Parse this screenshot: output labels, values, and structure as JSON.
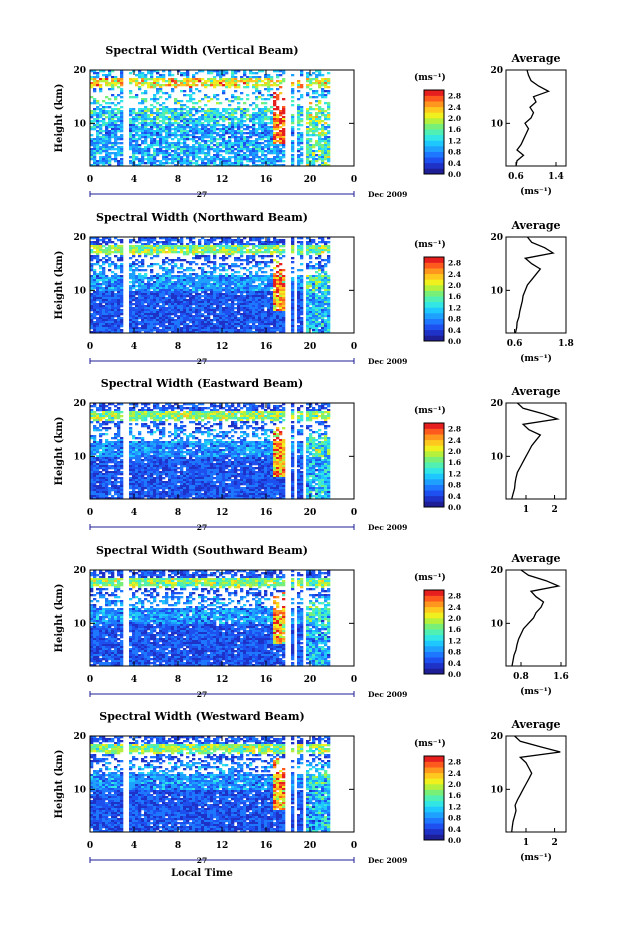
{
  "chart_data": {
    "type": "heatmap",
    "title": "",
    "xlabel": "Local Time",
    "x_ticks": [
      "0",
      "4",
      "8",
      "12",
      "16",
      "20",
      "0"
    ],
    "x_range": [
      0,
      24
    ],
    "date_day": "27",
    "date_label": "Dec 2009",
    "colorbar": {
      "unit_label": "(ms⁻¹)",
      "ticks": [
        "0.0",
        "0.4",
        "0.8",
        "1.2",
        "1.6",
        "2.0",
        "2.4",
        "2.8"
      ],
      "range": [
        0.0,
        3.0
      ],
      "colors": [
        "#1e1e96",
        "#1e32c8",
        "#1e50f0",
        "#1e78ff",
        "#1ea0ff",
        "#1ec8ff",
        "#32e6e6",
        "#50f0b4",
        "#78f078",
        "#b4f03c",
        "#f0f01e",
        "#ffc81e",
        "#ff961e",
        "#ff5a1e",
        "#e61e1e"
      ]
    },
    "panels": [
      {
        "title": "Spectral Width (Vertical Beam)",
        "ylabel": "Height (km)",
        "y_ticks": [
          "10",
          "20"
        ],
        "y_range": [
          2,
          20
        ],
        "avg_title": "Average",
        "avg_xlabel": "(ms⁻¹)",
        "avg_x_ticks": [
          "0.6",
          "1.4"
        ],
        "avg_x_range": [
          0.4,
          1.6
        ],
        "avg_profile": [
          [
            2,
            0.6
          ],
          [
            3,
            0.62
          ],
          [
            4,
            0.75
          ],
          [
            5,
            0.62
          ],
          [
            6,
            0.7
          ],
          [
            7,
            0.75
          ],
          [
            8,
            0.8
          ],
          [
            9,
            0.85
          ],
          [
            10,
            0.78
          ],
          [
            11,
            0.9
          ],
          [
            12,
            0.95
          ],
          [
            13,
            0.88
          ],
          [
            14,
            1.0
          ],
          [
            15,
            0.95
          ],
          [
            16,
            1.25
          ],
          [
            17,
            1.05
          ],
          [
            18,
            0.9
          ],
          [
            19,
            0.85
          ],
          [
            20,
            0.82
          ]
        ]
      },
      {
        "title": "Spectral Width (Northward Beam)",
        "ylabel": "Height (km)",
        "y_ticks": [
          "10",
          "20"
        ],
        "y_range": [
          2,
          20
        ],
        "avg_title": "Average",
        "avg_xlabel": "(ms⁻¹)",
        "avg_x_ticks": [
          "0.6",
          "1.8"
        ],
        "avg_x_range": [
          0.4,
          1.8
        ],
        "avg_profile": [
          [
            2,
            0.62
          ],
          [
            3,
            0.65
          ],
          [
            4,
            0.66
          ],
          [
            5,
            0.7
          ],
          [
            6,
            0.72
          ],
          [
            7,
            0.75
          ],
          [
            8,
            0.78
          ],
          [
            9,
            0.8
          ],
          [
            10,
            0.85
          ],
          [
            11,
            0.9
          ],
          [
            12,
            1.0
          ],
          [
            13,
            1.1
          ],
          [
            14,
            1.2
          ],
          [
            15,
            1.0
          ],
          [
            16,
            0.85
          ],
          [
            17,
            1.5
          ],
          [
            18,
            1.3
          ],
          [
            19,
            1.0
          ],
          [
            20,
            0.9
          ]
        ]
      },
      {
        "title": "Spectral Width (Eastward Beam)",
        "ylabel": "Height (km)",
        "y_ticks": [
          "10",
          "20"
        ],
        "y_range": [
          2,
          20
        ],
        "avg_title": "Average",
        "avg_xlabel": "",
        "avg_x_ticks": [
          "1",
          "2"
        ],
        "avg_x_range": [
          0.3,
          2.4
        ],
        "avg_profile": [
          [
            2,
            0.5
          ],
          [
            3,
            0.55
          ],
          [
            4,
            0.6
          ],
          [
            5,
            0.62
          ],
          [
            6,
            0.65
          ],
          [
            7,
            0.7
          ],
          [
            8,
            0.8
          ],
          [
            9,
            0.9
          ],
          [
            10,
            1.0
          ],
          [
            11,
            1.1
          ],
          [
            12,
            1.2
          ],
          [
            13,
            1.35
          ],
          [
            14,
            1.5
          ],
          [
            15,
            1.1
          ],
          [
            16,
            0.9
          ],
          [
            17,
            2.1
          ],
          [
            18,
            1.6
          ],
          [
            19,
            0.9
          ],
          [
            20,
            0.7
          ]
        ]
      },
      {
        "title": "Spectral Width (Southward Beam)",
        "ylabel": "Height (km)",
        "y_ticks": [
          "10",
          "20"
        ],
        "y_range": [
          2,
          20
        ],
        "avg_title": "Average",
        "avg_xlabel": "(ms⁻¹)",
        "avg_x_ticks": [
          "0.8",
          "1.6"
        ],
        "avg_x_range": [
          0.5,
          1.7
        ],
        "avg_profile": [
          [
            2,
            0.62
          ],
          [
            3,
            0.64
          ],
          [
            4,
            0.66
          ],
          [
            5,
            0.7
          ],
          [
            6,
            0.72
          ],
          [
            7,
            0.75
          ],
          [
            8,
            0.8
          ],
          [
            9,
            0.85
          ],
          [
            10,
            0.95
          ],
          [
            11,
            1.05
          ],
          [
            12,
            1.1
          ],
          [
            13,
            1.2
          ],
          [
            14,
            1.25
          ],
          [
            15,
            1.1
          ],
          [
            16,
            1.0
          ],
          [
            17,
            1.55
          ],
          [
            18,
            1.3
          ],
          [
            19,
            0.95
          ],
          [
            20,
            0.8
          ]
        ]
      },
      {
        "title": "Spectral Width (Westward Beam)",
        "ylabel": "Height (km)",
        "y_ticks": [
          "10",
          "20"
        ],
        "y_range": [
          2,
          20
        ],
        "avg_title": "Average",
        "avg_xlabel": "(ms⁻¹)",
        "avg_x_ticks": [
          "1",
          "2"
        ],
        "avg_x_range": [
          0.3,
          2.4
        ],
        "avg_profile": [
          [
            2,
            0.5
          ],
          [
            3,
            0.52
          ],
          [
            4,
            0.55
          ],
          [
            5,
            0.6
          ],
          [
            6,
            0.65
          ],
          [
            7,
            0.62
          ],
          [
            8,
            0.7
          ],
          [
            9,
            0.8
          ],
          [
            10,
            0.9
          ],
          [
            11,
            1.0
          ],
          [
            12,
            1.1
          ],
          [
            13,
            1.2
          ],
          [
            14,
            1.1
          ],
          [
            15,
            1.0
          ],
          [
            16,
            0.8
          ],
          [
            17,
            2.2
          ],
          [
            18,
            1.5
          ],
          [
            19,
            0.8
          ],
          [
            20,
            0.6
          ]
        ]
      }
    ]
  }
}
